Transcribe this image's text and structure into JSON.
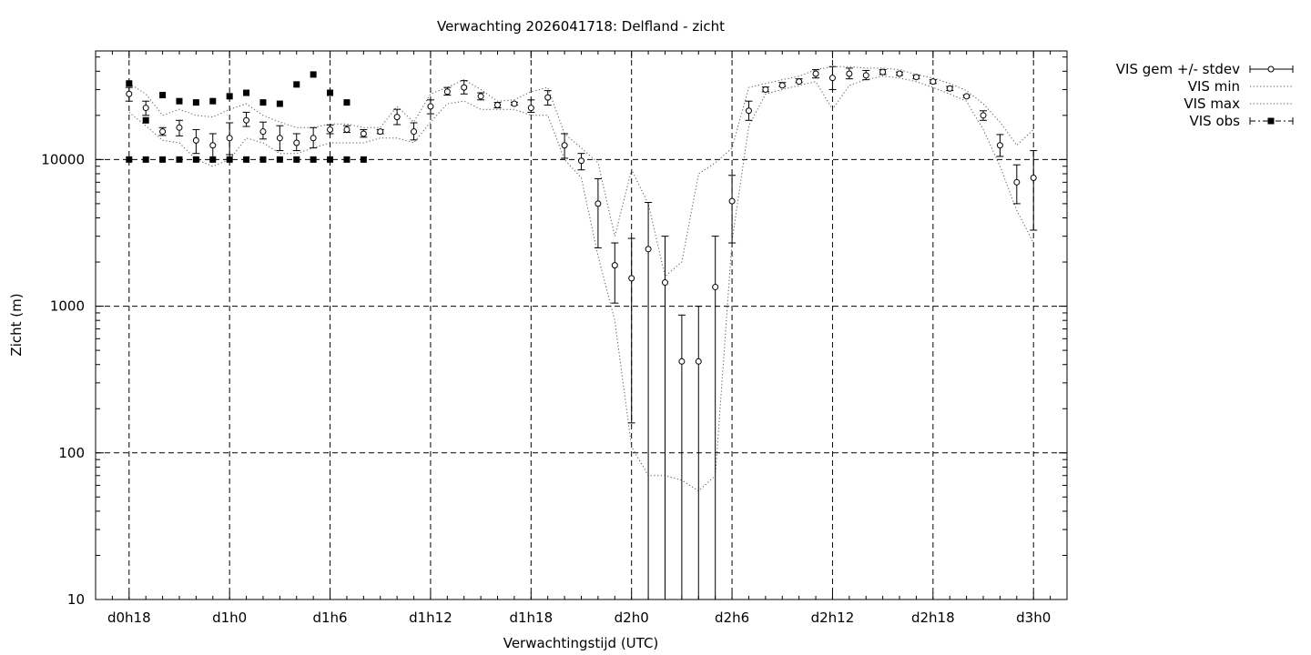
{
  "chart_data": {
    "type": "scatter",
    "title": "Verwachting 2026041718: Delfland - zicht",
    "xlabel": "Verwachtingstijd (UTC)",
    "ylabel": "Zicht (m)",
    "yscale": "log",
    "ylim": [
      10,
      55000
    ],
    "xlim": [
      -2,
      56
    ],
    "xunit": "hours since d0h18",
    "grid": true,
    "legend_position": "top-right outside",
    "x_ticks": [
      {
        "x": 0,
        "label": "d0h18"
      },
      {
        "x": 6,
        "label": "d1h0"
      },
      {
        "x": 12,
        "label": "d1h6"
      },
      {
        "x": 18,
        "label": "d1h12"
      },
      {
        "x": 24,
        "label": "d1h18"
      },
      {
        "x": 30,
        "label": "d2h0"
      },
      {
        "x": 36,
        "label": "d2h6"
      },
      {
        "x": 42,
        "label": "d2h12"
      },
      {
        "x": 48,
        "label": "d2h18"
      },
      {
        "x": 54,
        "label": "d3h0"
      }
    ],
    "y_ticks": [
      {
        "y": 10,
        "label": "10"
      },
      {
        "y": 100,
        "label": "100"
      },
      {
        "y": 1000,
        "label": "1000"
      },
      {
        "y": 10000,
        "label": "10000"
      }
    ],
    "series": [
      {
        "name": "VIS gem +/- stdev",
        "style": "points-errorbars",
        "x": [
          0,
          1,
          2,
          3,
          4,
          5,
          6,
          7,
          8,
          9,
          10,
          11,
          12,
          13,
          14,
          15,
          16,
          17,
          18,
          19,
          20,
          21,
          22,
          23,
          24,
          25,
          26,
          27,
          28,
          29,
          30,
          31,
          32,
          33,
          34,
          35,
          36,
          37,
          38,
          39,
          40,
          41,
          42,
          43,
          44,
          45,
          46,
          47,
          48,
          49,
          50,
          51,
          52,
          53,
          54
        ],
        "y": [
          28000,
          22500,
          15500,
          16500,
          13500,
          12500,
          14000,
          18500,
          15500,
          14000,
          13000,
          14000,
          16000,
          16000,
          15000,
          15500,
          19500,
          15500,
          23000,
          29000,
          31000,
          27000,
          23500,
          24000,
          22500,
          26500,
          12500,
          9800,
          5000,
          1900,
          1550,
          2450,
          1450,
          420,
          420,
          1350,
          5200,
          21500,
          30000,
          32000,
          34000,
          38500,
          36000,
          38500,
          37500,
          39500,
          38500,
          36500,
          34000,
          30500,
          27000,
          20000,
          12500,
          7000,
          7500
        ],
        "err_low": [
          25000,
          20000,
          14600,
          14500,
          11000,
          10000,
          10800,
          16800,
          13800,
          11500,
          11500,
          12000,
          15000,
          15300,
          14200,
          15000,
          17300,
          13600,
          20500,
          27500,
          28000,
          25500,
          22500,
          23500,
          21000,
          23500,
          10200,
          8500,
          2500,
          1050,
          160,
          10,
          10,
          10,
          10,
          10,
          2700,
          18500,
          29000,
          31500,
          33500,
          36000,
          30000,
          35500,
          35000,
          38000,
          37500,
          35500,
          33000,
          29500,
          26500,
          18500,
          10500,
          5000,
          3300
        ],
        "err_high": [
          31000,
          25000,
          16500,
          18500,
          16000,
          15000,
          17800,
          21000,
          18000,
          17000,
          15000,
          16500,
          17200,
          17000,
          16000,
          16000,
          22000,
          17800,
          25500,
          31000,
          34500,
          28500,
          24500,
          24600,
          25500,
          29500,
          15000,
          11000,
          7400,
          2700,
          2900,
          5100,
          3000,
          870,
          1000,
          3000,
          7800,
          25000,
          31200,
          33500,
          35500,
          41000,
          43000,
          42000,
          40500,
          41000,
          39500,
          37500,
          35000,
          31500,
          27500,
          21500,
          14800,
          9200,
          11500
        ]
      },
      {
        "name": "VIS min",
        "style": "dotted-line",
        "x": [
          0,
          1,
          2,
          3,
          4,
          5,
          6,
          7,
          8,
          9,
          10,
          11,
          12,
          13,
          14,
          15,
          16,
          17,
          18,
          19,
          20,
          21,
          22,
          23,
          24,
          25,
          26,
          27,
          28,
          29,
          30,
          31,
          32,
          33,
          34,
          35,
          36,
          37,
          38,
          39,
          40,
          41,
          42,
          43,
          44,
          45,
          46,
          47,
          48,
          49,
          50,
          51,
          52,
          53,
          54
        ],
        "y": [
          21000,
          17000,
          13500,
          13000,
          10000,
          9000,
          10000,
          14000,
          13000,
          11000,
          11000,
          12000,
          13000,
          13000,
          13000,
          14000,
          14000,
          13000,
          18000,
          24000,
          25000,
          22000,
          22000,
          22000,
          20000,
          20000,
          10000,
          7500,
          2200,
          800,
          110,
          70,
          70,
          65,
          55,
          70,
          2800,
          17000,
          28000,
          30000,
          32000,
          34000,
          22000,
          32000,
          35000,
          37000,
          36000,
          34000,
          31000,
          28000,
          25000,
          16000,
          9000,
          4500,
          2700
        ]
      },
      {
        "name": "VIS max",
        "style": "dotted-line",
        "x": [
          0,
          1,
          2,
          3,
          4,
          5,
          6,
          7,
          8,
          9,
          10,
          11,
          12,
          13,
          14,
          15,
          16,
          17,
          18,
          19,
          20,
          21,
          22,
          23,
          24,
          25,
          26,
          27,
          28,
          29,
          30,
          31,
          32,
          33,
          34,
          35,
          36,
          37,
          38,
          39,
          40,
          41,
          42,
          43,
          44,
          45,
          46,
          47,
          48,
          49,
          50,
          51,
          52,
          53,
          54
        ],
        "y": [
          33000,
          28000,
          20000,
          22000,
          20000,
          19500,
          22000,
          24000,
          20000,
          18000,
          16500,
          16500,
          17500,
          17500,
          16500,
          16500,
          23000,
          18000,
          28000,
          31000,
          35000,
          30000,
          25000,
          25500,
          29000,
          31000,
          15000,
          12000,
          9500,
          3000,
          8500,
          5000,
          1600,
          2000,
          8000,
          9500,
          12000,
          31000,
          33000,
          35000,
          37000,
          41000,
          43000,
          43000,
          42000,
          42000,
          41000,
          38000,
          36000,
          33000,
          29500,
          24000,
          18000,
          12500,
          16000
        ]
      },
      {
        "name": "VIS obs",
        "style": "points",
        "x": [
          0,
          1,
          2,
          3,
          4,
          5,
          6,
          7,
          8,
          9,
          10,
          11,
          12,
          13,
          0,
          1,
          2,
          3,
          4,
          5,
          6,
          7,
          8,
          9,
          10,
          11,
          12,
          13,
          14
        ],
        "y": [
          33000,
          18500,
          27500,
          25000,
          24500,
          25000,
          27000,
          28500,
          24500,
          24000,
          32500,
          38000,
          28500,
          24500,
          10000,
          10000,
          10000,
          10000,
          10000,
          10000,
          10000,
          10000,
          10000,
          10000,
          10000,
          10000,
          10000,
          10000,
          10000
        ]
      }
    ],
    "legend": [
      {
        "label": "VIS gem +/- stdev"
      },
      {
        "label": "VIS min"
      },
      {
        "label": "VIS max"
      },
      {
        "label": "VIS obs"
      }
    ]
  }
}
